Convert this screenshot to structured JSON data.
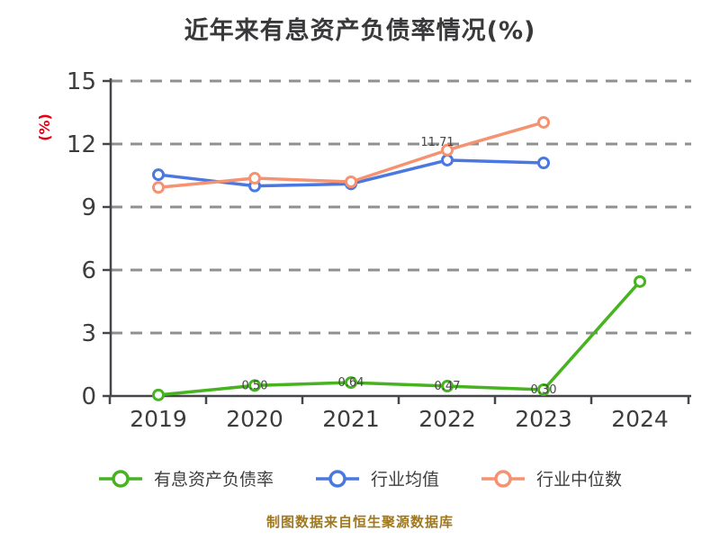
{
  "title": "近年来有息资产负债率情况(%)",
  "y_axis_unit": "(%)",
  "footer": "制图数据来自恒生聚源数据库",
  "legend": {
    "items": [
      {
        "label": "有息资产负债率",
        "color": "#47b320"
      },
      {
        "label": "行业均值",
        "color": "#4a78e0"
      },
      {
        "label": "行业中位数",
        "color": "#f59272"
      }
    ]
  },
  "colors": {
    "grid": "#909090",
    "axis": "#46464a",
    "tick_label": "#3d3d3f",
    "title": "#39393b",
    "unit_red": "#e60012",
    "footer_gold": "#a0781e",
    "data_label": "#474747",
    "marker_fill": "#ffffff"
  },
  "chart_data": {
    "type": "line",
    "title": "近年来有息资产负债率情况(%)",
    "xlabel": "",
    "ylabel": "(%)",
    "categories": [
      "2019",
      "2020",
      "2021",
      "2022",
      "2023",
      "2024"
    ],
    "series": [
      {
        "name": "有息资产负债率",
        "color": "#47b320",
        "values": [
          0.05,
          0.5,
          0.64,
          0.47,
          0.3,
          5.45
        ],
        "point_labels": [
          "",
          "0.50",
          "0.64",
          "0.47",
          "0.30",
          ""
        ]
      },
      {
        "name": "行业均值",
        "color": "#4a78e0",
        "values": [
          10.54,
          10.0,
          10.1,
          11.23,
          11.1,
          null
        ],
        "point_labels": [
          "",
          "",
          "",
          "",
          "",
          ""
        ]
      },
      {
        "name": "行业中位数",
        "color": "#f59272",
        "values": [
          9.93,
          10.37,
          10.2,
          11.71,
          13.03,
          null
        ],
        "point_labels": [
          "",
          "",
          "",
          "11.71",
          "",
          ""
        ]
      }
    ],
    "ylim": [
      0,
      15
    ],
    "yticks": [
      0,
      3,
      6,
      9,
      12,
      15
    ],
    "grid": "horizontal-dashed",
    "legend_position": "bottom",
    "marker": "circle-white-fill"
  }
}
